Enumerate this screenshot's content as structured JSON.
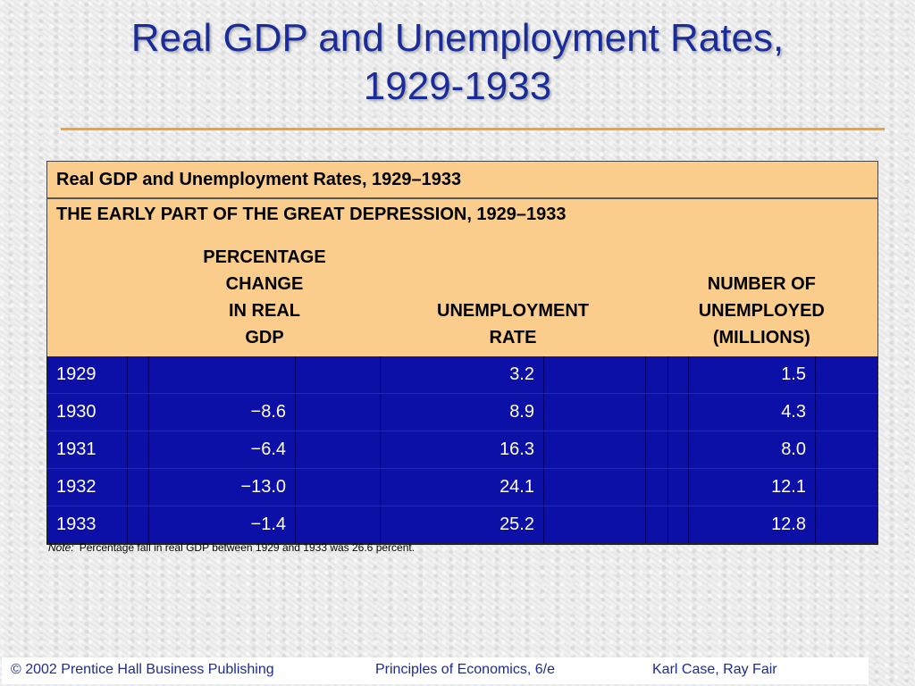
{
  "slide": {
    "title_line1": "Real GDP and Unemployment Rates,",
    "title_line2": "1929-1933"
  },
  "table": {
    "caption": "Real GDP and Unemployment Rates, 1929–1933",
    "subtitle": "THE EARLY PART OF THE GREAT DEPRESSION, 1929–1933",
    "headers": {
      "gdp": [
        "PERCENTAGE",
        "CHANGE",
        "IN REAL",
        "GDP"
      ],
      "unemployment_rate": [
        "UNEMPLOYMENT",
        "RATE"
      ],
      "unemployed": [
        "NUMBER OF",
        "UNEMPLOYED",
        "(MILLIONS)"
      ]
    },
    "rows": [
      {
        "year": "1929",
        "gdp_change": "",
        "unemployment_rate": "3.2",
        "unemployed": "1.5"
      },
      {
        "year": "1930",
        "gdp_change": "−8.6",
        "unemployment_rate": "8.9",
        "unemployed": "4.3"
      },
      {
        "year": "1931",
        "gdp_change": "−6.4",
        "unemployment_rate": "16.3",
        "unemployed": "8.0"
      },
      {
        "year": "1932",
        "gdp_change": "−13.0",
        "unemployment_rate": "24.1",
        "unemployed": "12.1"
      },
      {
        "year": "1933",
        "gdp_change": "−1.4",
        "unemployment_rate": "25.2",
        "unemployed": "12.8"
      }
    ],
    "note_label": "Note:",
    "note_text": "Percentage fall in real GDP between 1929 and 1933 was 26.6 percent."
  },
  "footer": {
    "copyright": "© 2002 Prentice Hall Business Publishing",
    "book": "Principles of Economics, 6/e",
    "authors": "Karl Case, Ray Fair"
  },
  "colors": {
    "title": "#1a2c99",
    "accent_rule": "#f0a23a",
    "header_bg": "#fbcd8d",
    "body_bg": "#0d10a7"
  }
}
